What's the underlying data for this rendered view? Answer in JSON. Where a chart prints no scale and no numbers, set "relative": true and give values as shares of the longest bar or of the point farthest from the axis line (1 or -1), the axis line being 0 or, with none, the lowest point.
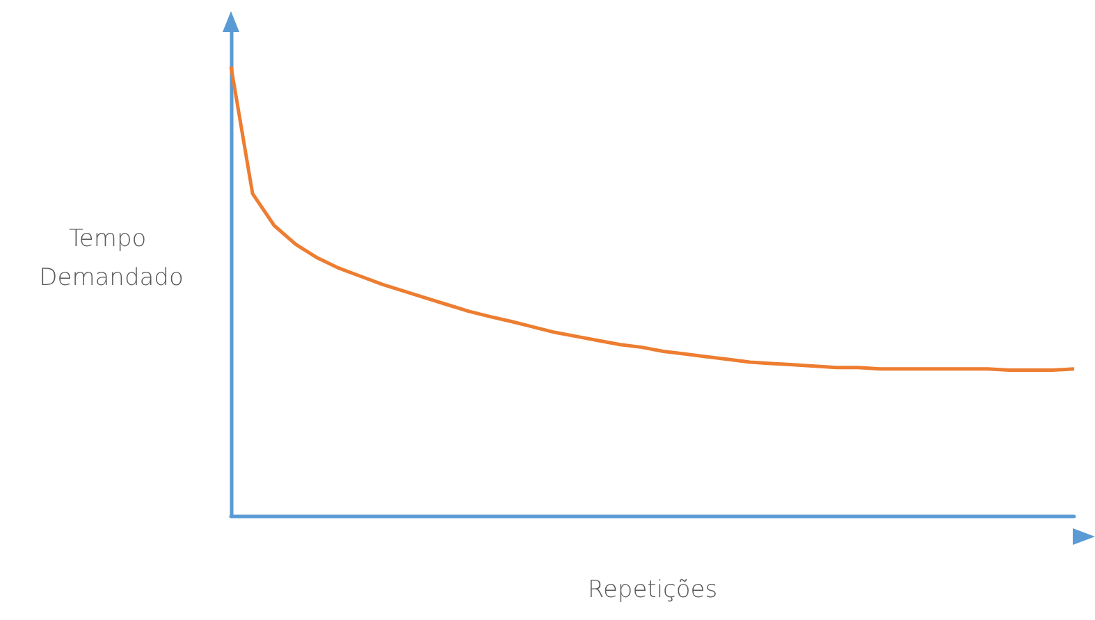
{
  "chart_data": {
    "type": "line",
    "relative": true,
    "xlabel": "Repetições",
    "ylabel": "Tempo Demandado",
    "grid": false,
    "marker": "none",
    "line_style": "solid",
    "categories": [
      null,
      null,
      null,
      null,
      null,
      null,
      null,
      null,
      null,
      null,
      null,
      null,
      null,
      null,
      null,
      null,
      null,
      null,
      null,
      null,
      null,
      null,
      null,
      null,
      null,
      null,
      null,
      null,
      null,
      null,
      null,
      null,
      null,
      null,
      null,
      null,
      null,
      null,
      null,
      null
    ],
    "series": [
      {
        "color": "#ed7d31",
        "values": [
          1.0,
          0.717,
          0.646,
          0.604,
          0.574,
          0.551,
          0.533,
          0.515,
          0.5,
          0.485,
          0.47,
          0.455,
          0.443,
          0.432,
          0.42,
          0.408,
          0.399,
          0.39,
          0.381,
          0.375,
          0.366,
          0.36,
          0.354,
          0.348,
          0.342,
          0.339,
          0.336,
          0.333,
          0.33,
          0.33,
          0.327,
          0.327,
          0.327,
          0.327,
          0.327,
          0.327,
          0.324,
          0.324,
          0.324,
          0.327
        ]
      }
    ]
  }
}
